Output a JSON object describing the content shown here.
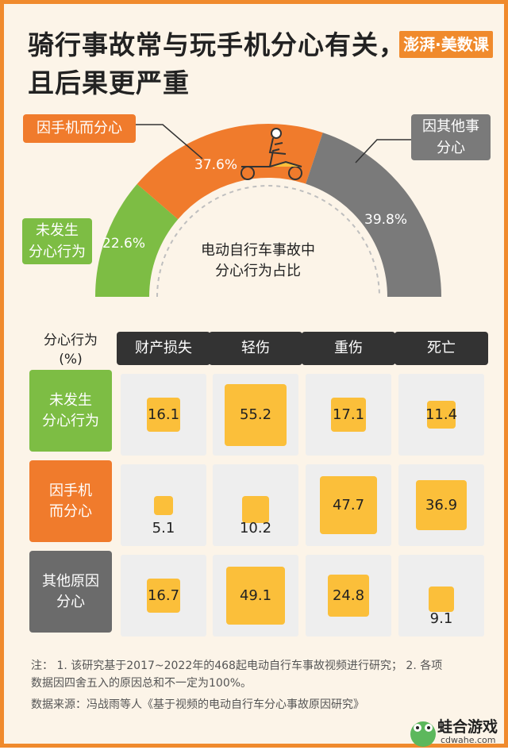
{
  "title_line1": "骑行事故常与玩手机分心有关，",
  "title_line2": "且后果更严重",
  "brand": "澎湃·美数课",
  "chart_data": [
    {
      "type": "pie",
      "title": "电动自行车事故中分心行为占比",
      "center_line1": "电动自行车事故中",
      "center_line2": "分心行为占比",
      "slices": [
        {
          "name": "未发生分心行为",
          "name_line1": "未发生",
          "name_line2": "分心行为",
          "value": 22.6,
          "label": "22.6%",
          "color": "#7dbd44"
        },
        {
          "name": "因手机而分心",
          "value": 37.6,
          "label": "37.6%",
          "color": "#f07b2c"
        },
        {
          "name": "因其他事分心",
          "name_line1": "因其他事",
          "name_line2": "分心",
          "value": 39.8,
          "label": "39.8%",
          "color": "#7a7a7a"
        }
      ]
    },
    {
      "type": "heatmap",
      "corner_line1": "分心行为",
      "corner_line2": "(%)",
      "columns": [
        "财产损失",
        "轻伤",
        "重伤",
        "死亡"
      ],
      "rows": [
        {
          "name": "未发生分心行为",
          "line1": "未发生",
          "line2": "分心行为",
          "color": "#7dbd44",
          "values": [
            16.1,
            55.2,
            17.1,
            11.4
          ],
          "labels": [
            "16.1",
            "55.2",
            "17.1",
            "11.4"
          ]
        },
        {
          "name": "因手机而分心",
          "line1": "因手机",
          "line2": "而分心",
          "color": "#f07b2c",
          "values": [
            5.1,
            10.2,
            47.7,
            36.9
          ],
          "labels": [
            "5.1",
            "10.2",
            "47.7",
            "36.9"
          ]
        },
        {
          "name": "其他原因分心",
          "line1": "其他原因",
          "line2": "分心",
          "color": "#6b6b6b",
          "values": [
            16.7,
            49.1,
            24.8,
            9.1
          ],
          "labels": [
            "16.7",
            "49.1",
            "24.8",
            "9.1"
          ]
        }
      ]
    }
  ],
  "note_line1": "注：  1. 该研究基于2017~2022年的468起电动自行车事故视频进行研究；  2. 各项",
  "note_line2": "数据因四舍五入的原因总和不一定为100%。",
  "source": "数据来源：冯战雨等人《基于视频的电动自行车分心事故原因研究》",
  "watermark_title": "蛙合游戏",
  "watermark_url": "cdwahe.com",
  "colors": {
    "frame": "#f08a2c",
    "background": "#fcf4e8",
    "square": "#fbbf3a",
    "cell": "#eeeeee"
  }
}
